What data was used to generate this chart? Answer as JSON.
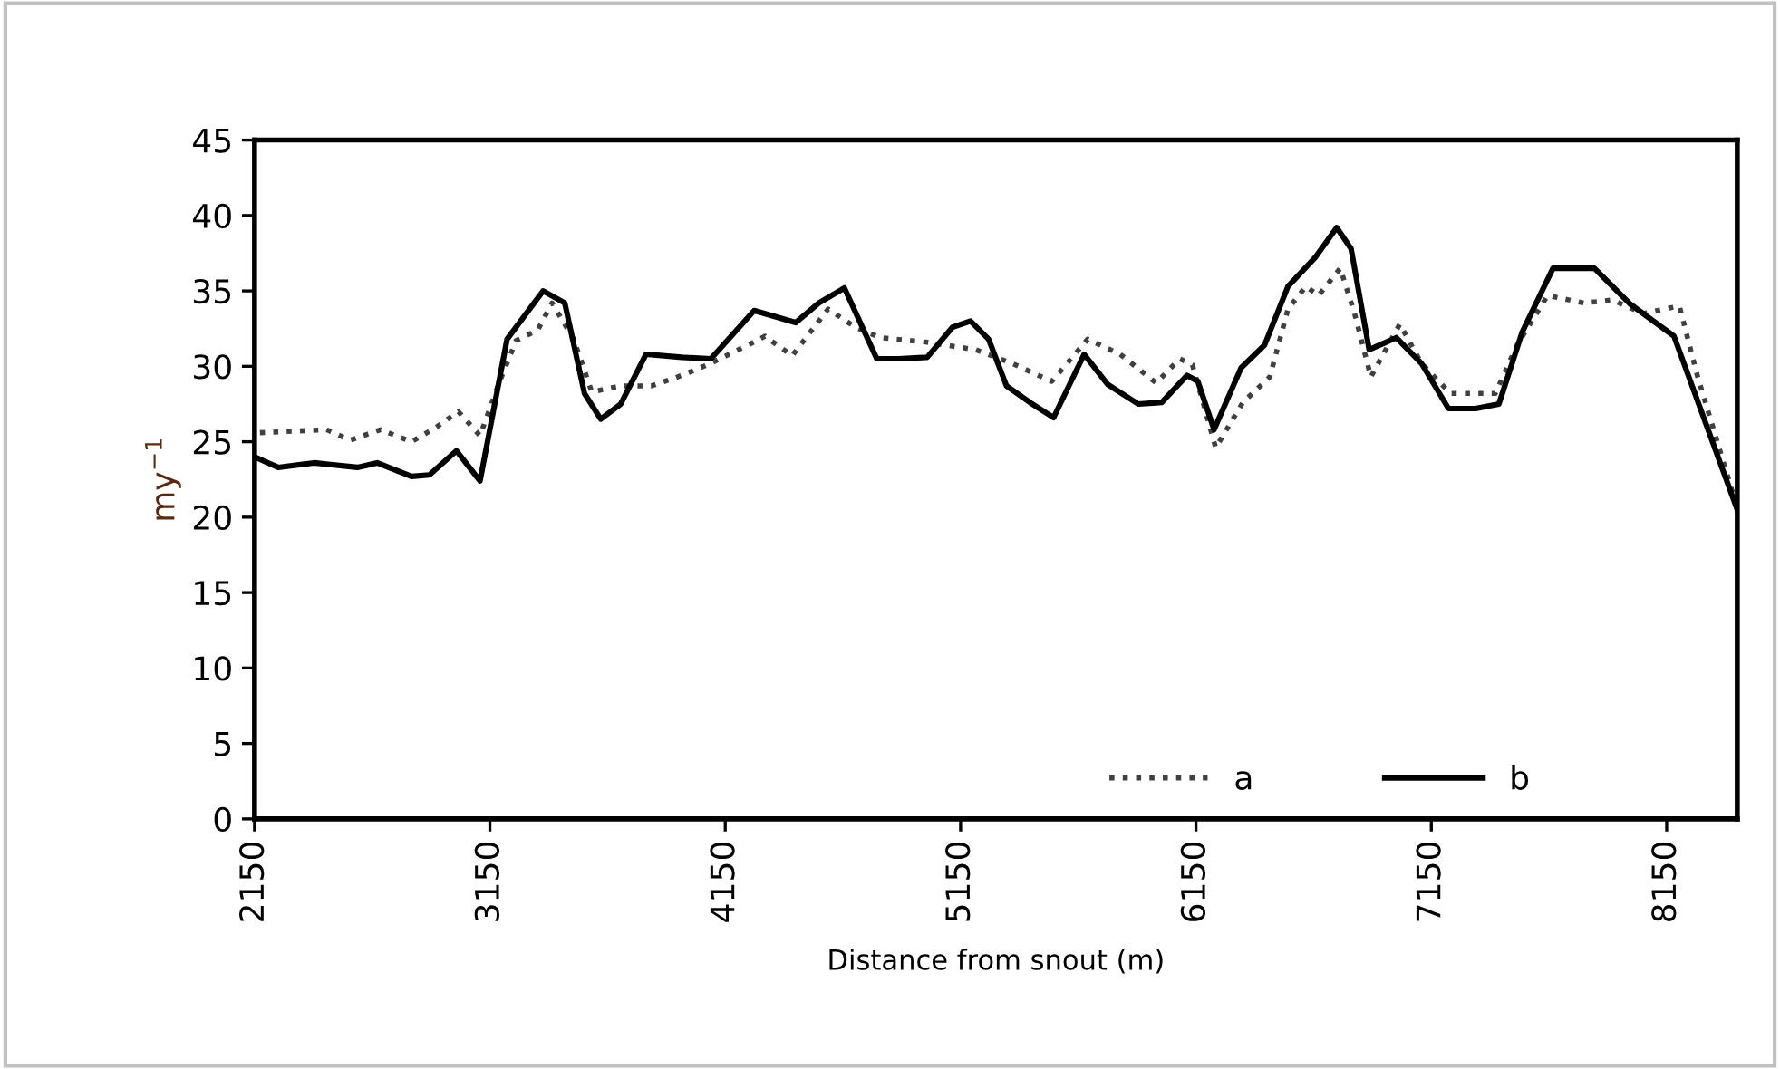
{
  "chart_data": {
    "type": "line",
    "xlabel": "Distance from snout (m)",
    "ylabel": "my$^{−1}$",
    "xlim": [
      2150,
      8450
    ],
    "xticks": [
      2150,
      3150,
      4150,
      5150,
      6150,
      7150,
      8150
    ],
    "ylim": [
      0,
      45
    ],
    "yticks": [
      0,
      5,
      10,
      15,
      20,
      25,
      30,
      35,
      40,
      45
    ],
    "grid": false,
    "legend": "bottom right",
    "marker": "none",
    "series": [
      {
        "name": "a",
        "color": "#404040",
        "line_style": "dotted",
        "x": [
          2173,
          2456,
          2556,
          2686,
          2817,
          2916,
          3016,
          3108,
          3184,
          3261,
          3353,
          3414,
          3506,
          3583,
          3706,
          3836,
          3966,
          4089,
          4296,
          4319,
          4434,
          4587,
          4702,
          4809,
          5008,
          5215,
          5368,
          5537,
          5690,
          5828,
          5981,
          6081,
          6135,
          6234,
          6349,
          6464,
          6541,
          6617,
          6671,
          6763,
          6824,
          6893,
          7016,
          7108,
          7231,
          7422,
          7514,
          7644,
          7798,
          7920,
          8050,
          8204,
          8280,
          8450
        ],
        "values": [
          25.6,
          25.8,
          25.1,
          25.8,
          25.0,
          25.9,
          27.0,
          25.4,
          28.7,
          31.7,
          32.4,
          34.2,
          31.8,
          28.3,
          28.7,
          28.7,
          29.4,
          30.2,
          31.8,
          32.0,
          30.7,
          33.8,
          32.6,
          31.9,
          31.6,
          31.1,
          30.2,
          29.0,
          31.8,
          30.8,
          28.9,
          30.5,
          30.1,
          24.6,
          27.6,
          29.3,
          33.8,
          35.3,
          34.7,
          36.5,
          33.5,
          29.3,
          32.8,
          30.2,
          28.2,
          28.2,
          31.4,
          34.7,
          34.2,
          34.4,
          33.5,
          34.0,
          29.4,
          20.6
        ]
      },
      {
        "name": "b",
        "color": "#000000",
        "line_style": "solid",
        "x": [
          2150,
          2250,
          2403,
          2587,
          2671,
          2817,
          2893,
          3008,
          3108,
          3223,
          3376,
          3468,
          3552,
          3621,
          3706,
          3813,
          3966,
          4089,
          4273,
          4449,
          4548,
          4656,
          4794,
          4886,
          5008,
          5116,
          5192,
          5269,
          5345,
          5445,
          5545,
          5675,
          5775,
          5905,
          6004,
          6112,
          6158,
          6227,
          6342,
          6441,
          6541,
          6656,
          6748,
          6809,
          6886,
          7001,
          7108,
          7223,
          7338,
          7437,
          7537,
          7667,
          7843,
          7997,
          8181,
          8450
        ],
        "values": [
          24.0,
          23.3,
          23.6,
          23.3,
          23.6,
          22.7,
          22.8,
          24.4,
          22.4,
          31.8,
          35.0,
          34.2,
          28.2,
          26.5,
          27.5,
          30.8,
          30.6,
          30.5,
          33.7,
          32.9,
          34.2,
          35.2,
          30.5,
          30.5,
          30.6,
          32.6,
          33.0,
          31.8,
          28.7,
          27.6,
          26.6,
          30.8,
          28.8,
          27.5,
          27.6,
          29.4,
          29.0,
          25.8,
          29.9,
          31.4,
          35.3,
          37.2,
          39.2,
          37.8,
          31.1,
          31.9,
          30.2,
          27.2,
          27.2,
          27.5,
          32.3,
          36.5,
          36.5,
          34.1,
          32.0,
          20.5
        ]
      }
    ]
  }
}
